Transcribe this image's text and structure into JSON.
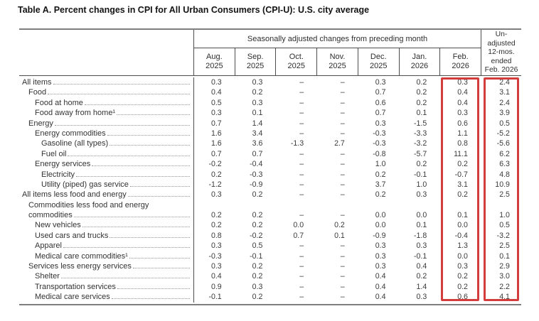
{
  "title": "Table A. Percent changes in CPI for All Urban Consumers (CPI-U): U.S. city average",
  "table": {
    "spanner": "Seasonally adjusted changes from preceding month",
    "unadjusted_header_lines": [
      "Un-",
      "adjusted",
      "12-mos.",
      "ended",
      "Feb. 2026"
    ],
    "month_columns": [
      {
        "month": "Aug.",
        "year": "2025"
      },
      {
        "month": "Sep.",
        "year": "2025"
      },
      {
        "month": "Oct.",
        "year": "2025"
      },
      {
        "month": "Nov.",
        "year": "2025"
      },
      {
        "month": "Dec.",
        "year": "2025"
      },
      {
        "month": "Jan.",
        "year": "2026"
      },
      {
        "month": "Feb.",
        "year": "2026"
      }
    ],
    "rows": [
      {
        "label": "All items",
        "indent": 0,
        "values": [
          "0.3",
          "0.3",
          "–",
          "–",
          "0.3",
          "0.2",
          "0.3"
        ],
        "unadjusted": "2.4"
      },
      {
        "label": "Food",
        "indent": 1,
        "values": [
          "0.4",
          "0.2",
          "–",
          "–",
          "0.7",
          "0.2",
          "0.4"
        ],
        "unadjusted": "3.1"
      },
      {
        "label": "Food at home",
        "indent": 2,
        "values": [
          "0.5",
          "0.3",
          "–",
          "–",
          "0.6",
          "0.2",
          "0.4"
        ],
        "unadjusted": "2.4"
      },
      {
        "label": "Food away from home¹",
        "indent": 2,
        "values": [
          "0.3",
          "0.1",
          "–",
          "–",
          "0.7",
          "0.1",
          "0.3"
        ],
        "unadjusted": "3.9"
      },
      {
        "label": "Energy",
        "indent": 1,
        "values": [
          "0.7",
          "1.4",
          "–",
          "–",
          "0.3",
          "-1.5",
          "0.6"
        ],
        "unadjusted": "0.5"
      },
      {
        "label": "Energy commodities",
        "indent": 2,
        "values": [
          "1.6",
          "3.4",
          "–",
          "–",
          "-0.3",
          "-3.3",
          "1.1"
        ],
        "unadjusted": "-5.2"
      },
      {
        "label": "Gasoline (all types)",
        "indent": 3,
        "values": [
          "1.6",
          "3.6",
          "-1.3",
          "2.7",
          "-0.3",
          "-3.2",
          "0.8"
        ],
        "unadjusted": "-5.6"
      },
      {
        "label": "Fuel oil",
        "indent": 3,
        "values": [
          "0.7",
          "0.7",
          "–",
          "–",
          "-0.8",
          "-5.7",
          "11.1"
        ],
        "unadjusted": "6.2"
      },
      {
        "label": "Energy services",
        "indent": 2,
        "values": [
          "-0.2",
          "-0.4",
          "–",
          "–",
          "1.0",
          "0.2",
          "0.2"
        ],
        "unadjusted": "6.3"
      },
      {
        "label": "Electricity",
        "indent": 3,
        "values": [
          "0.2",
          "-0.3",
          "–",
          "–",
          "0.2",
          "-0.1",
          "-0.7"
        ],
        "unadjusted": "4.8"
      },
      {
        "label": "Utility (piped) gas service",
        "indent": 3,
        "values": [
          "-1.2",
          "-0.9",
          "–",
          "–",
          "3.7",
          "1.0",
          "3.1"
        ],
        "unadjusted": "10.9"
      },
      {
        "label": "All items less food and energy",
        "indent": 0,
        "values": [
          "0.3",
          "0.2",
          "–",
          "–",
          "0.2",
          "0.3",
          "0.2"
        ],
        "unadjusted": "2.5"
      },
      {
        "label": "Commodities less food and energy",
        "label2": "commodities",
        "indent": 1,
        "values": [
          "0.2",
          "0.2",
          "–",
          "–",
          "0.0",
          "0.0",
          "0.1"
        ],
        "unadjusted": "1.0"
      },
      {
        "label": "New vehicles",
        "indent": 2,
        "values": [
          "0.2",
          "0.2",
          "0.0",
          "0.2",
          "0.0",
          "0.1",
          "0.0"
        ],
        "unadjusted": "0.5"
      },
      {
        "label": "Used cars and trucks",
        "indent": 2,
        "values": [
          "0.8",
          "-0.2",
          "0.7",
          "0.1",
          "-0.9",
          "-1.8",
          "-0.4"
        ],
        "unadjusted": "-3.2"
      },
      {
        "label": "Apparel",
        "indent": 2,
        "values": [
          "0.3",
          "0.5",
          "–",
          "–",
          "0.3",
          "0.3",
          "1.3"
        ],
        "unadjusted": "2.5"
      },
      {
        "label": "Medical care commodities¹",
        "indent": 2,
        "values": [
          "-0.3",
          "-0.1",
          "–",
          "–",
          "0.3",
          "-0.1",
          "0.0"
        ],
        "unadjusted": "0.1"
      },
      {
        "label": "Services less energy services",
        "indent": 1,
        "values": [
          "0.3",
          "0.2",
          "–",
          "–",
          "0.3",
          "0.4",
          "0.3"
        ],
        "unadjusted": "2.9"
      },
      {
        "label": "Shelter",
        "indent": 2,
        "values": [
          "0.4",
          "0.2",
          "–",
          "–",
          "0.4",
          "0.2",
          "0.2"
        ],
        "unadjusted": "3.0"
      },
      {
        "label": "Transportation services",
        "indent": 2,
        "values": [
          "0.9",
          "0.3",
          "–",
          "–",
          "0.4",
          "1.4",
          "0.2"
        ],
        "unadjusted": "2.2"
      },
      {
        "label": "Medical care services",
        "indent": 2,
        "values": [
          "-0.1",
          "0.2",
          "–",
          "–",
          "0.4",
          "0.3",
          "0.6"
        ],
        "unadjusted": "4.1"
      }
    ],
    "highlight": {
      "color": "#d43d3d",
      "highlighted_columns": [
        "Feb. 2026",
        "Unadjusted 12-mos. ended Feb. 2026"
      ]
    }
  }
}
